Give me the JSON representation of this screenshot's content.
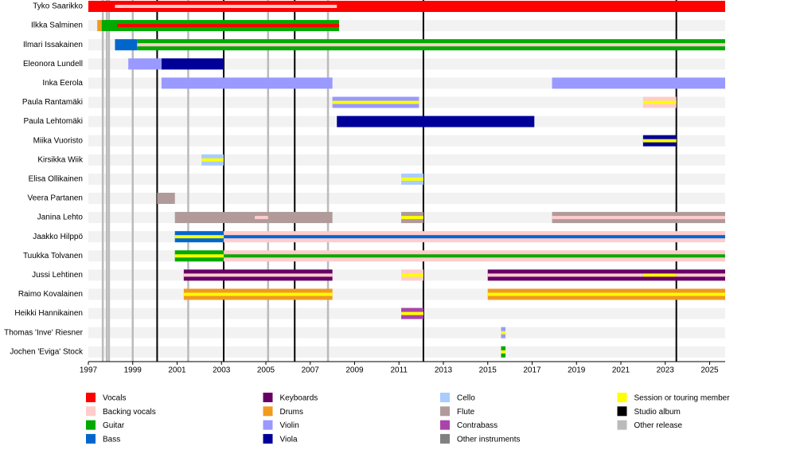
{
  "chart_data": {
    "type": "timeline",
    "xlim": [
      1997,
      2025.7
    ],
    "xticks": [
      1997,
      1999,
      2001,
      2003,
      2005,
      2007,
      2009,
      2011,
      2013,
      2015,
      2017,
      2019,
      2021,
      2023,
      2025
    ],
    "legend": [
      {
        "name": "Vocals",
        "color": "#ff0000"
      },
      {
        "name": "Backing vocals",
        "color": "#ffcccc"
      },
      {
        "name": "Guitar",
        "color": "#00aa00"
      },
      {
        "name": "Bass",
        "color": "#0066cc"
      },
      {
        "name": "Keyboards",
        "color": "#660066"
      },
      {
        "name": "Drums",
        "color": "#f09a20"
      },
      {
        "name": "Violin",
        "color": "#9999ff"
      },
      {
        "name": "Viola",
        "color": "#000099"
      },
      {
        "name": "Cello",
        "color": "#aaccff"
      },
      {
        "name": "Flute",
        "color": "#b09a9a"
      },
      {
        "name": "Contrabass",
        "color": "#aa44aa"
      },
      {
        "name": "Other instruments",
        "color": "#808080"
      },
      {
        "name": "Session or touring member",
        "color": "#ffff00"
      },
      {
        "name": "Studio album",
        "color": "#000000"
      },
      {
        "name": "Other release",
        "color": "#bbbbbb"
      }
    ],
    "studio_albums": [
      2000.1,
      2003.1,
      2006.3,
      2012.1,
      2023.5
    ],
    "other_releases": [
      1997.65,
      1997.83,
      1997.93,
      1999.0,
      2001.5,
      2005.1,
      2007.8
    ],
    "members": [
      {
        "name": "Tyko Saarikko",
        "bars": [
          {
            "role": "Vocals",
            "start": 1997,
            "end": 2025.7
          }
        ],
        "stripes": [
          {
            "role": "Backing vocals",
            "start": 1998.2,
            "end": 2008.2
          }
        ]
      },
      {
        "name": "Ilkka Salminen",
        "bars": [
          {
            "role": "Drums",
            "start": 1997.4,
            "end": 1997.6
          },
          {
            "role": "Guitar",
            "start": 1997.6,
            "end": 2008.3
          }
        ],
        "stripes": [
          {
            "role": "Vocals",
            "start": 1998.3,
            "end": 2008.3
          }
        ]
      },
      {
        "name": "Ilmari Issakainen",
        "bars": [
          {
            "role": "Bass",
            "start": 1998.2,
            "end": 1999.2
          },
          {
            "role": "Guitar",
            "start": 1999.2,
            "end": 2025.7
          }
        ],
        "stripes": [
          {
            "role": "Backing vocals",
            "start": 1999.2,
            "end": 2025.7
          }
        ]
      },
      {
        "name": "Eleonora Lundell",
        "bars": [
          {
            "role": "Violin",
            "start": 1998.8,
            "end": 2000.3
          },
          {
            "role": "Viola",
            "start": 2000.3,
            "end": 2003.1
          }
        ],
        "stripes": []
      },
      {
        "name": "Inka Eerola",
        "bars": [
          {
            "role": "Violin",
            "start": 2000.3,
            "end": 2008.0
          },
          {
            "role": "Violin",
            "start": 2017.9,
            "end": 2025.7
          }
        ],
        "stripes": []
      },
      {
        "name": "Paula Rantamäki",
        "bars": [
          {
            "role": "Violin",
            "start": 2008.0,
            "end": 2011.9
          },
          {
            "role": "Backing vocals",
            "start": 2022.0,
            "end": 2023.5
          }
        ],
        "stripes": [
          {
            "role": "Session or touring member",
            "start": 2008.0,
            "end": 2011.9
          },
          {
            "role": "Session or touring member",
            "start": 2022.0,
            "end": 2023.5
          }
        ]
      },
      {
        "name": "Paula Lehtomäki",
        "bars": [
          {
            "role": "Viola",
            "start": 2008.2,
            "end": 2017.1
          }
        ],
        "stripes": []
      },
      {
        "name": "Miika Vuoristo",
        "bars": [
          {
            "role": "Viola",
            "start": 2022.0,
            "end": 2023.5
          }
        ],
        "stripes": [
          {
            "role": "Session or touring member",
            "start": 2022.0,
            "end": 2023.5
          }
        ]
      },
      {
        "name": "Kirsikka Wiik",
        "bars": [
          {
            "role": "Cello",
            "start": 2002.1,
            "end": 2003.1
          }
        ],
        "stripes": [
          {
            "role": "Session or touring member",
            "start": 2002.1,
            "end": 2003.1
          }
        ]
      },
      {
        "name": "Elisa Ollikainen",
        "bars": [
          {
            "role": "Cello",
            "start": 2011.1,
            "end": 2012.1
          }
        ],
        "stripes": [
          {
            "role": "Session or touring member",
            "start": 2011.1,
            "end": 2012.1
          }
        ]
      },
      {
        "name": "Veera Partanen",
        "bars": [
          {
            "role": "Flute",
            "start": 2000.1,
            "end": 2000.9
          }
        ],
        "stripes": []
      },
      {
        "name": "Janina Lehto",
        "bars": [
          {
            "role": "Flute",
            "start": 2000.9,
            "end": 2008.0
          },
          {
            "role": "Flute",
            "start": 2011.1,
            "end": 2012.1
          },
          {
            "role": "Flute",
            "start": 2017.9,
            "end": 2025.7
          }
        ],
        "stripes": [
          {
            "role": "Backing vocals",
            "start": 2004.5,
            "end": 2005.1
          },
          {
            "role": "Session or touring member",
            "start": 2011.1,
            "end": 2012.1
          },
          {
            "role": "Backing vocals",
            "start": 2017.9,
            "end": 2025.7
          }
        ]
      },
      {
        "name": "Jaakko Hilppö",
        "bars": [
          {
            "role": "Bass",
            "start": 2000.9,
            "end": 2003.1
          },
          {
            "role": "Backing vocals",
            "start": 2003.1,
            "end": 2025.7
          }
        ],
        "stripes": [
          {
            "role": "Session or touring member",
            "start": 2000.9,
            "end": 2003.1
          },
          {
            "role": "Bass",
            "start": 2003.1,
            "end": 2025.7
          }
        ]
      },
      {
        "name": "Tuukka Tolvanen",
        "bars": [
          {
            "role": "Guitar",
            "start": 2000.9,
            "end": 2003.1
          },
          {
            "role": "Backing vocals",
            "start": 2003.1,
            "end": 2025.7
          }
        ],
        "stripes": [
          {
            "role": "Session or touring member",
            "start": 2000.9,
            "end": 2003.1
          },
          {
            "role": "Guitar",
            "start": 2003.1,
            "end": 2025.7
          }
        ]
      },
      {
        "name": "Jussi Lehtinen",
        "bars": [
          {
            "role": "Keyboards",
            "start": 2001.3,
            "end": 2008.0
          },
          {
            "role": "Backing vocals",
            "start": 2011.1,
            "end": 2012.1
          },
          {
            "role": "Keyboards",
            "start": 2015.0,
            "end": 2025.7
          }
        ],
        "stripes": [
          {
            "role": "Backing vocals",
            "start": 2001.3,
            "end": 2008.0
          },
          {
            "role": "Session or touring member",
            "start": 2011.1,
            "end": 2012.1
          },
          {
            "role": "Backing vocals",
            "start": 2015.0,
            "end": 2022.0
          },
          {
            "role": "Session or touring member",
            "start": 2022.0,
            "end": 2023.5
          },
          {
            "role": "Backing vocals",
            "start": 2023.5,
            "end": 2025.7
          }
        ]
      },
      {
        "name": "Raimo Kovalainen",
        "bars": [
          {
            "role": "Drums",
            "start": 2001.3,
            "end": 2008.0
          },
          {
            "role": "Drums",
            "start": 2015.0,
            "end": 2025.7
          }
        ],
        "stripes": [
          {
            "role": "Session or touring member",
            "start": 2001.3,
            "end": 2008.0
          },
          {
            "role": "Session or touring member",
            "start": 2015.0,
            "end": 2025.7
          }
        ]
      },
      {
        "name": "Heikki Hannikainen",
        "bars": [
          {
            "role": "Contrabass",
            "start": 2011.1,
            "end": 2012.1
          }
        ],
        "stripes": [
          {
            "role": "Session or touring member",
            "start": 2011.1,
            "end": 2012.1
          }
        ]
      },
      {
        "name": "Thomas 'Inve' Riesner",
        "bars": [
          {
            "role": "Violin",
            "start": 2015.6,
            "end": 2015.8
          }
        ],
        "stripes": [
          {
            "role": "Session or touring member",
            "start": 2015.6,
            "end": 2015.8
          }
        ]
      },
      {
        "name": "Jochen 'Eviga' Stock",
        "bars": [
          {
            "role": "Guitar",
            "start": 2015.6,
            "end": 2015.8
          }
        ],
        "stripes": [
          {
            "role": "Session or touring member",
            "start": 2015.6,
            "end": 2015.8
          }
        ]
      }
    ]
  }
}
